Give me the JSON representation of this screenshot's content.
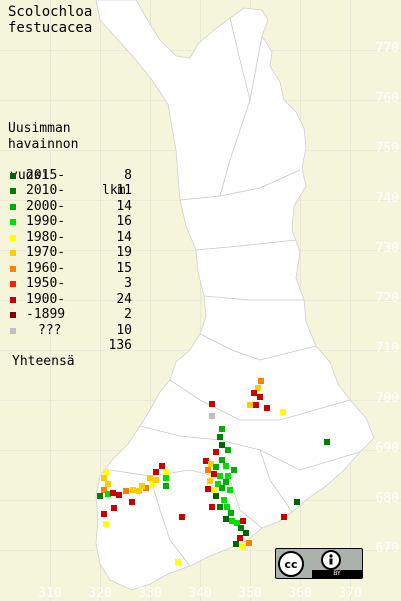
{
  "title_lines": [
    "Scolochloa",
    "festucacea"
  ],
  "legend": {
    "header_lines": [
      "Uusimman",
      "havainnon"
    ],
    "col_label_1": "vuosi",
    "col_label_2": "lkm",
    "entries": [
      {
        "label": "2015-",
        "count": "8",
        "color": "#006400"
      },
      {
        "label": "2010-",
        "count": "11",
        "color": "#008000"
      },
      {
        "label": "2000-",
        "count": "14",
        "color": "#00b000"
      },
      {
        "label": "1990-",
        "count": "16",
        "color": "#00e000"
      },
      {
        "label": "1980-",
        "count": "14",
        "color": "#ffff00"
      },
      {
        "label": "1970-",
        "count": "19",
        "color": "#ffcc00"
      },
      {
        "label": "1960-",
        "count": "15",
        "color": "#ff8000"
      },
      {
        "label": "1950-",
        "count": "3",
        "color": "#ff2000"
      },
      {
        "label": "1900-",
        "count": "24",
        "color": "#cc0000"
      },
      {
        "label": "-1899",
        "count": "2",
        "color": "#800000"
      },
      {
        "label": "???",
        "count": "10",
        "color": "#c0c0c0"
      }
    ],
    "total_label": "Yhteensä",
    "total_count": "136"
  },
  "y_ticks": [
    "770",
    "760",
    "750",
    "740",
    "730",
    "720",
    "710",
    "700",
    "690",
    "680",
    "670"
  ],
  "x_ticks": [
    "310",
    "320",
    "330",
    "340",
    "350",
    "360",
    "370"
  ],
  "colors": {
    "background": "#f5f5dc",
    "land": "#ffffff",
    "grid": "#e0e0d0",
    "border": "#c8c8c8",
    "tick_text": "#ffffff"
  },
  "license_badge": {
    "text": "BY",
    "icons": [
      "cc-icon",
      "attribution-icon"
    ]
  }
}
